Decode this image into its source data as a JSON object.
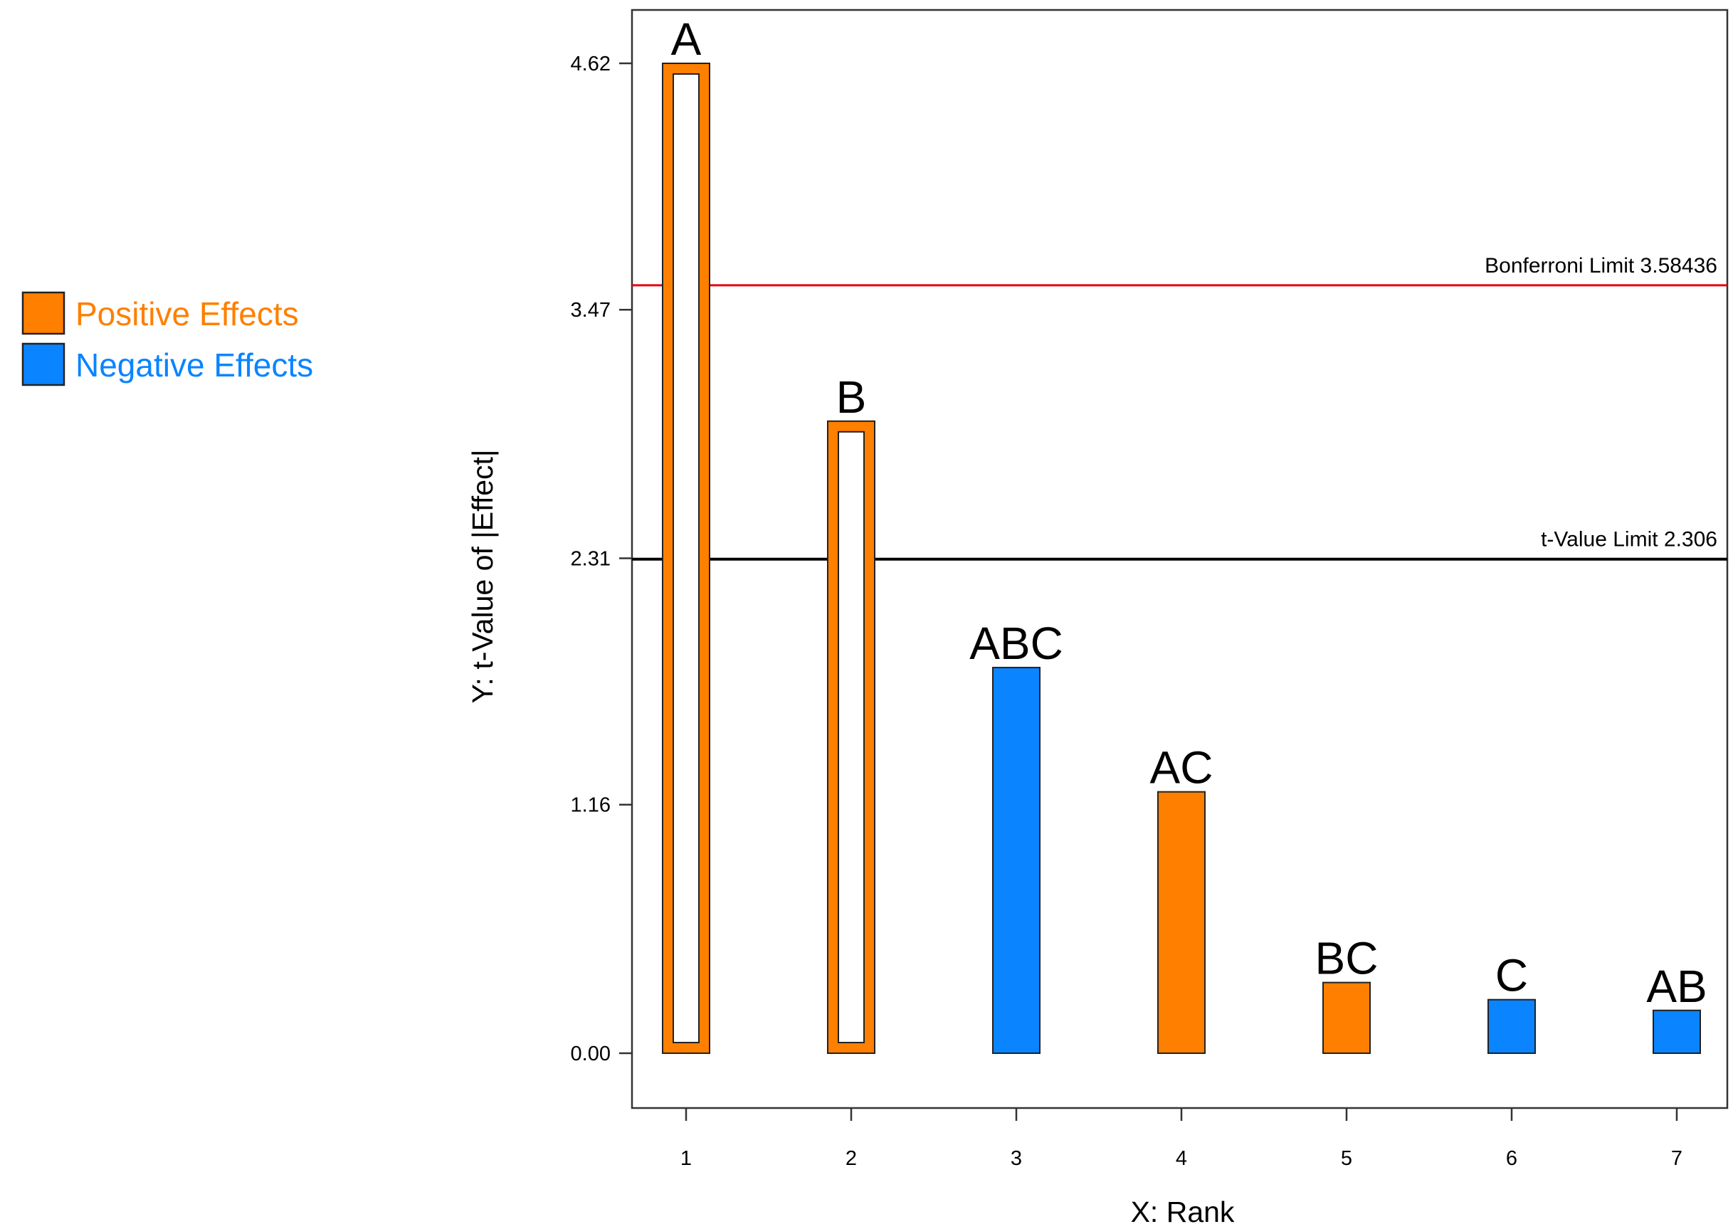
{
  "chart_data": {
    "type": "bar",
    "title": "",
    "xlabel": "X: Rank",
    "ylabel": "Y: t-Value of |Effect|",
    "x": [
      1,
      2,
      3,
      4,
      5,
      6,
      7
    ],
    "categories": [
      "A",
      "B",
      "ABC",
      "AC",
      "BC",
      "C",
      "AB"
    ],
    "values": [
      4.62,
      2.95,
      1.8,
      1.22,
      0.33,
      0.25,
      0.2
    ],
    "signs": [
      "positive",
      "positive",
      "negative",
      "positive",
      "positive",
      "negative",
      "negative"
    ],
    "outlined": [
      true,
      true,
      false,
      false,
      false,
      false,
      false
    ],
    "ylim": [
      -0.26,
      4.82
    ],
    "yticks": [
      "0.00",
      "1.16",
      "2.31",
      "3.47",
      "4.62"
    ],
    "xticks": [
      "1",
      "2",
      "3",
      "4",
      "5",
      "6",
      "7"
    ],
    "reference_lines": [
      {
        "name": "Bonferroni Limit",
        "label": "Bonferroni Limit 3.58436",
        "value": 3.58436,
        "color": "#e8000d"
      },
      {
        "name": "t-Value Limit",
        "label": "t-Value Limit 2.306",
        "value": 2.306,
        "color": "#000000"
      }
    ],
    "legend": [
      {
        "label": "Positive Effects",
        "color": "#ff7f00"
      },
      {
        "label": "Negative Effects",
        "color": "#0a84ff"
      }
    ],
    "legend_position": "left"
  }
}
